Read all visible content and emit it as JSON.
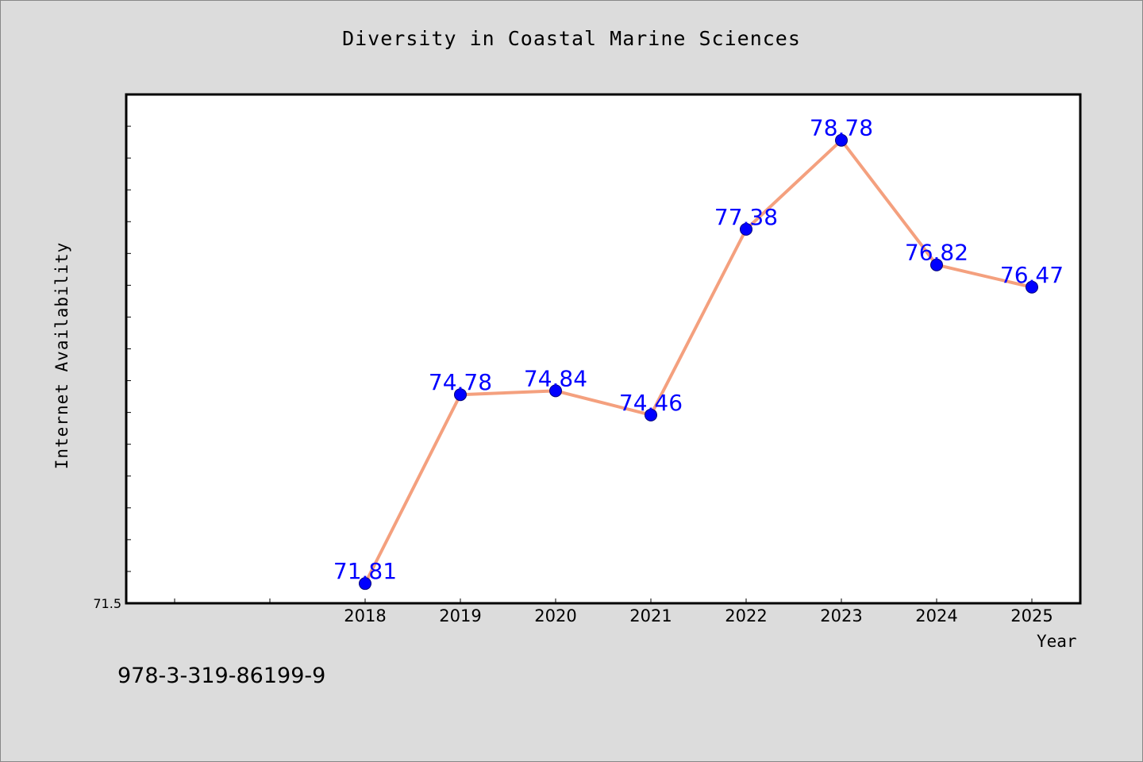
{
  "chart_data": {
    "type": "line",
    "title": "Diversity in Coastal Marine Sciences",
    "xlabel": "Year",
    "ylabel": "Internet Availability",
    "categories": [
      "2018",
      "2019",
      "2020",
      "2021",
      "2022",
      "2023",
      "2024",
      "2025"
    ],
    "series": [
      {
        "values": [
          71.81,
          74.78,
          74.84,
          74.46,
          77.38,
          78.78,
          76.82,
          76.47
        ],
        "data_labels": [
          "71.81",
          "74.78",
          "74.84",
          "74.46",
          "77.38",
          "78.78",
          "76.82",
          "76.47"
        ],
        "line_color": "#f4a07e",
        "marker_color": "#0000ff",
        "label_color": "#0000ff"
      }
    ],
    "y_tick_labels": [
      "71.5"
    ],
    "ylim": [
      71.5,
      79.5
    ],
    "grid": false,
    "legend": "none"
  },
  "footer": {
    "isbn": "978-3-319-86199-9"
  },
  "colors": {
    "background": "#dcdcdc",
    "plot_area": "#ffffff",
    "axes": "#000000"
  }
}
